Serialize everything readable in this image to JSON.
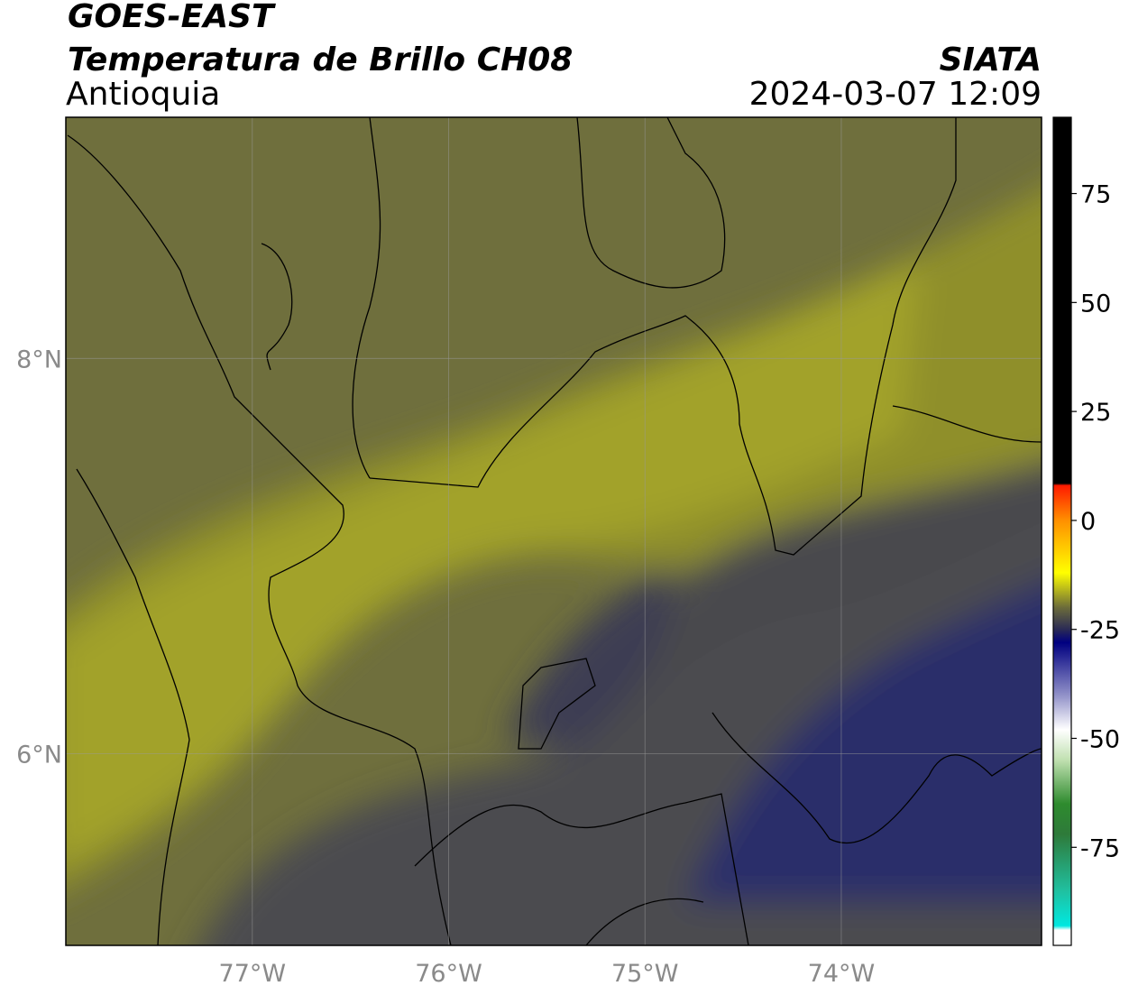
{
  "chart_data": {
    "type": "map",
    "title": "GOES-EAST",
    "subtitle": "Temperatura de Brillo CH08",
    "region": "Antioquia",
    "source": "SIATA",
    "datetime": "2024-03-07 12:09",
    "xlim": [
      -77.95,
      -72.98
    ],
    "ylim": [
      5.03,
      9.22
    ],
    "xticks": [
      {
        "value": -77,
        "label": "77°W"
      },
      {
        "value": -76,
        "label": "76°W"
      },
      {
        "value": -75,
        "label": "75°W"
      },
      {
        "value": -74,
        "label": "74°W"
      }
    ],
    "yticks": [
      {
        "value": 6,
        "label": "6°N"
      },
      {
        "value": 8,
        "label": "8°N"
      }
    ],
    "grid": true,
    "clim": [
      -97.5,
      92.5
    ],
    "cticks": [
      75,
      50,
      25,
      0,
      -25,
      -50,
      -75
    ],
    "colormap": [
      {
        "value": 92.5,
        "color": "#000000"
      },
      {
        "value": 8.5,
        "color": "#000000"
      },
      {
        "value": 8,
        "color": "#ff1a00"
      },
      {
        "value": 0,
        "color": "#ff9000"
      },
      {
        "value": -12,
        "color": "#ffff00"
      },
      {
        "value": -20,
        "color": "#6b6b3a"
      },
      {
        "value": -25,
        "color": "#2a2a55"
      },
      {
        "value": -28,
        "color": "#000080"
      },
      {
        "value": -40,
        "color": "#9090c8"
      },
      {
        "value": -48,
        "color": "#ffffff"
      },
      {
        "value": -55,
        "color": "#c0e0b0"
      },
      {
        "value": -65,
        "color": "#2e8b2e"
      },
      {
        "value": -72,
        "color": "#2e7a3a"
      },
      {
        "value": -85,
        "color": "#20c0a0"
      },
      {
        "value": -93,
        "color": "#00e8e0"
      },
      {
        "value": -94,
        "color": "#ffffff"
      }
    ]
  }
}
